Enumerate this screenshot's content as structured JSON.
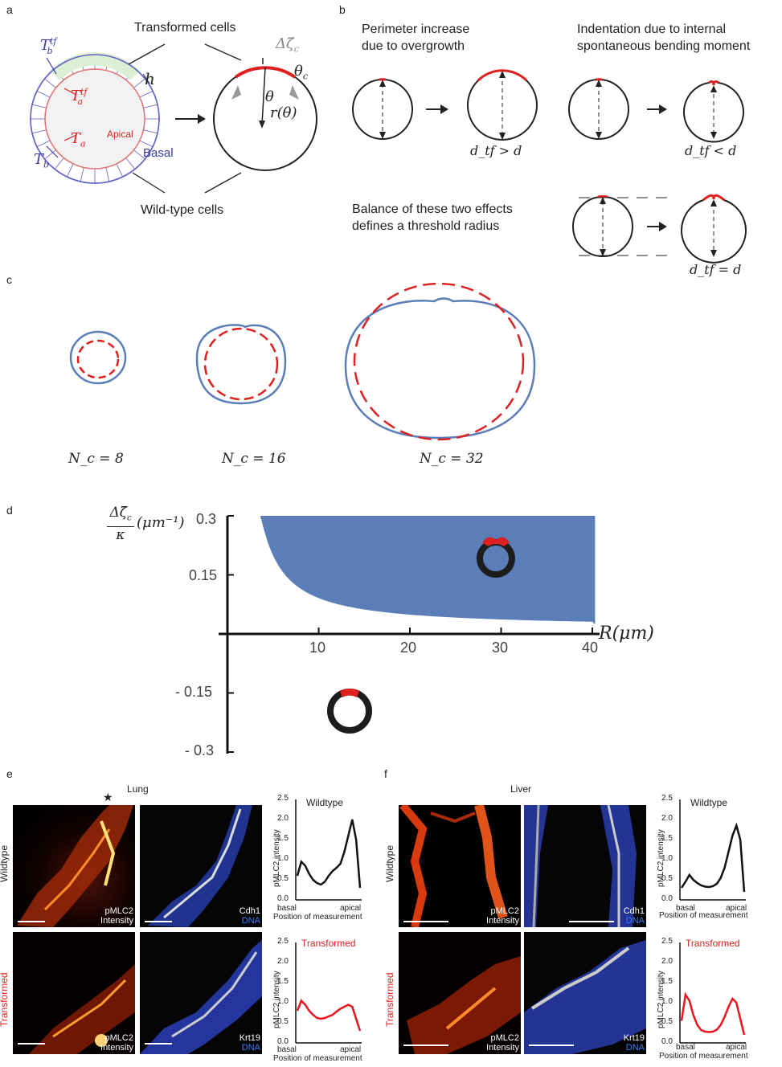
{
  "panel_labels": {
    "a": "a",
    "b": "b",
    "c": "c",
    "d": "d",
    "e": "e",
    "f": "f"
  },
  "panel_a": {
    "top_label": "Transformed cells",
    "bottom_label": "Wild-type cells",
    "apical": "Apical",
    "basal": "Basal",
    "symbols": {
      "Tb_tf": "T",
      "Tb_tf_sub": "b",
      "Tb_tf_sup": "tf",
      "Ta_tf": "T",
      "Ta_tf_sub": "a",
      "Ta_tf_sup": "tf",
      "Ta": "T",
      "Ta_sub": "a",
      "Tb": "T",
      "Tb_sub": "b",
      "h": "h",
      "dzeta": "Δζ̄",
      "dzeta_sub": "c",
      "theta_c": "θ",
      "theta_c_sub": "c",
      "theta": "θ",
      "r_theta": "r(θ)"
    }
  },
  "panel_b": {
    "title1_line1": "Perimeter increase",
    "title1_line2": "due to overgrowth",
    "title2_line1": "Indentation due to internal",
    "title2_line2": "spontaneous bending moment",
    "title3_line1": "Balance of these two effects",
    "title3_line2": "defines a threshold radius",
    "eq1": "d_tf > d",
    "eq2": "d_tf < d",
    "eq3": "d_tf = d"
  },
  "panel_c": {
    "labels": [
      "N_c = 8",
      "N_c = 16",
      "N_c = 32"
    ]
  },
  "panel_d": {
    "ylabel_num": "Δζ̄",
    "ylabel_sub": "c",
    "ylabel_den": "κ",
    "ylabel_unit": "(μm⁻¹)",
    "xlabel": "R(μm)",
    "y_ticks": [
      "0.3",
      "0.15",
      "- 0.15",
      "- 0.3"
    ],
    "x_ticks": [
      "10",
      "20",
      "30",
      "40"
    ],
    "fill_color": "#5b7db8"
  },
  "panel_e": {
    "title": "Lung",
    "star": "★",
    "row1_label": "Wildtype",
    "row2_label": "Transformed",
    "m1_label1": "pMLC2",
    "m1_label2": "Intensity",
    "m2_label1": "Cdh1",
    "m2_label2": "DNA",
    "m3_label1": "pMLC2",
    "m3_label2": "Intensity",
    "m4_label1": "Krt19",
    "m4_label2": "DNA",
    "plot1_title": "Wildtype",
    "plot2_title": "Transformed",
    "ylabel": "pMLC2 intensity",
    "xlabel": "Position of measurement",
    "xtick_basal": "basal",
    "xtick_apical": "apical",
    "yticks": [
      "2.5",
      "2.0",
      "1.5",
      "1.0",
      "0.5",
      "0.0"
    ]
  },
  "panel_f": {
    "title": "Liver",
    "row1_label": "Wildtype",
    "row2_label": "Transformed",
    "m1_label1": "pMLC2",
    "m1_label2": "Intensity",
    "m2_label1": "Cdh1",
    "m2_label2": "DNA",
    "m3_label1": "pMLC2",
    "m3_label2": "Intensity",
    "m4_label1": "Krt19",
    "m4_label2": "DNA",
    "plot1_title": "Wildtype",
    "plot2_title": "Transformed",
    "ylabel": "pMLC2 intensity",
    "xlabel": "Position of measurement",
    "xtick_basal": "basal",
    "xtick_apical": "apical",
    "yticks": [
      "2.5",
      "2.0",
      "1.5",
      "1.0",
      "0.5",
      "0.0"
    ]
  },
  "colors": {
    "red": "#e02020",
    "blue": "#5b7db8",
    "purple": "#3a3aa8",
    "wt_line": "#111111",
    "tf_line": "#e8141e"
  }
}
